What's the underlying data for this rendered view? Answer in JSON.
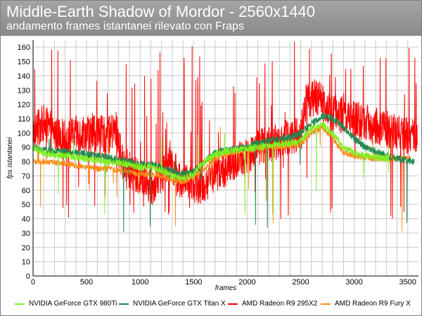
{
  "header": {
    "title": "Middle-Earth Shadow of Mordor - 2560x1440",
    "subtitle": "andamento frames istantanei rilevato con Fraps"
  },
  "chart_data": {
    "type": "line",
    "title": "Middle-Earth Shadow of Mordor - 2560x1440",
    "subtitle": "andamento frames istantanei rilevato con Fraps",
    "xlabel": "frames",
    "ylabel": "fps istantanei",
    "xlim": [
      0,
      3600
    ],
    "ylim": [
      0,
      165
    ],
    "x_ticks": [
      0,
      500,
      1000,
      1500,
      2000,
      2500,
      3000,
      3500
    ],
    "y_ticks": [
      0,
      10,
      20,
      30,
      40,
      50,
      60,
      70,
      80,
      90,
      100,
      110,
      120,
      130,
      140,
      150,
      160
    ],
    "grid": true,
    "legend_position": "bottom",
    "series": [
      {
        "name": "AMD Radeon R9 295X2",
        "color": "#ff0000",
        "end_frame": 3590,
        "noise": 13,
        "spike_rate": 0.07,
        "spike_range": [
          40,
          165
        ],
        "points": [
          [
            0,
            100
          ],
          [
            100,
            107
          ],
          [
            200,
            100
          ],
          [
            300,
            96
          ],
          [
            400,
            99
          ],
          [
            500,
            100
          ],
          [
            600,
            100
          ],
          [
            700,
            98
          ],
          [
            780,
            103
          ],
          [
            830,
            80
          ],
          [
            1000,
            67
          ],
          [
            1100,
            62
          ],
          [
            1200,
            70
          ],
          [
            1280,
            82
          ],
          [
            1350,
            70
          ],
          [
            1400,
            65
          ],
          [
            1500,
            64
          ],
          [
            1600,
            63
          ],
          [
            1700,
            72
          ],
          [
            1800,
            75
          ],
          [
            1900,
            80
          ],
          [
            2000,
            84
          ],
          [
            2100,
            90
          ],
          [
            2200,
            92
          ],
          [
            2300,
            95
          ],
          [
            2400,
            97
          ],
          [
            2500,
            100
          ],
          [
            2550,
            122
          ],
          [
            2650,
            125
          ],
          [
            2800,
            115
          ],
          [
            2900,
            112
          ],
          [
            3000,
            110
          ],
          [
            3100,
            107
          ],
          [
            3200,
            105
          ],
          [
            3300,
            103
          ],
          [
            3400,
            100
          ],
          [
            3500,
            98
          ],
          [
            3590,
            97
          ]
        ]
      },
      {
        "name": "AMD Radeon R9 Fury X",
        "color": "#ff8c1a",
        "end_frame": 3520,
        "noise": 2,
        "spike_rate": 0.015,
        "spike_range": [
          30,
          110
        ],
        "points": [
          [
            0,
            80
          ],
          [
            100,
            80
          ],
          [
            200,
            79
          ],
          [
            300,
            79
          ],
          [
            400,
            77
          ],
          [
            500,
            76
          ],
          [
            600,
            75
          ],
          [
            700,
            75
          ],
          [
            800,
            74
          ],
          [
            900,
            73
          ],
          [
            1000,
            71
          ],
          [
            1100,
            71
          ],
          [
            1200,
            70
          ],
          [
            1300,
            67
          ],
          [
            1400,
            66
          ],
          [
            1500,
            69
          ],
          [
            1600,
            75
          ],
          [
            1700,
            82
          ],
          [
            1800,
            85
          ],
          [
            1900,
            87
          ],
          [
            2000,
            88
          ],
          [
            2100,
            89
          ],
          [
            2200,
            90
          ],
          [
            2300,
            90
          ],
          [
            2400,
            91
          ],
          [
            2500,
            92
          ],
          [
            2600,
            100
          ],
          [
            2700,
            104
          ],
          [
            2800,
            96
          ],
          [
            2900,
            86
          ],
          [
            3000,
            84
          ],
          [
            3100,
            83
          ],
          [
            3200,
            82
          ],
          [
            3300,
            82
          ],
          [
            3400,
            82
          ],
          [
            3520,
            83
          ]
        ]
      },
      {
        "name": "NVIDIA GeForce GTX Titan X",
        "color": "#1e8a50",
        "end_frame": 3560,
        "noise": 2.5,
        "spike_rate": 0.008,
        "spike_range": [
          30,
          100
        ],
        "points": [
          [
            0,
            90
          ],
          [
            100,
            88
          ],
          [
            200,
            87
          ],
          [
            300,
            87
          ],
          [
            400,
            86
          ],
          [
            500,
            85
          ],
          [
            600,
            84
          ],
          [
            700,
            83
          ],
          [
            800,
            81
          ],
          [
            900,
            80
          ],
          [
            1000,
            78
          ],
          [
            1100,
            78
          ],
          [
            1200,
            76
          ],
          [
            1300,
            73
          ],
          [
            1400,
            71
          ],
          [
            1500,
            73
          ],
          [
            1600,
            80
          ],
          [
            1700,
            86
          ],
          [
            1800,
            88
          ],
          [
            1900,
            89
          ],
          [
            2000,
            90
          ],
          [
            2100,
            93
          ],
          [
            2200,
            95
          ],
          [
            2300,
            96
          ],
          [
            2400,
            97
          ],
          [
            2500,
            100
          ],
          [
            2600,
            106
          ],
          [
            2700,
            112
          ],
          [
            2800,
            110
          ],
          [
            2900,
            104
          ],
          [
            3000,
            96
          ],
          [
            3100,
            90
          ],
          [
            3200,
            87
          ],
          [
            3300,
            84
          ],
          [
            3400,
            82
          ],
          [
            3560,
            80
          ]
        ]
      },
      {
        "name": "NVIDIA GeForce GTX 980Ti",
        "color": "#80f020",
        "end_frame": 3330,
        "noise": 2.5,
        "spike_rate": 0.006,
        "spike_range": [
          35,
          100
        ],
        "points": [
          [
            0,
            90
          ],
          [
            100,
            86
          ],
          [
            200,
            85
          ],
          [
            300,
            84
          ],
          [
            400,
            83
          ],
          [
            500,
            82
          ],
          [
            600,
            81
          ],
          [
            700,
            80
          ],
          [
            800,
            79
          ],
          [
            900,
            78
          ],
          [
            1000,
            76
          ],
          [
            1100,
            76
          ],
          [
            1200,
            74
          ],
          [
            1300,
            70
          ],
          [
            1400,
            68
          ],
          [
            1500,
            71
          ],
          [
            1600,
            80
          ],
          [
            1700,
            85
          ],
          [
            1800,
            87
          ],
          [
            1900,
            88
          ],
          [
            2000,
            89
          ],
          [
            2100,
            90
          ],
          [
            2200,
            91
          ],
          [
            2300,
            92
          ],
          [
            2400,
            93
          ],
          [
            2500,
            94
          ],
          [
            2600,
            103
          ],
          [
            2700,
            106
          ],
          [
            2800,
            100
          ],
          [
            2900,
            90
          ],
          [
            3000,
            86
          ],
          [
            3100,
            84
          ],
          [
            3200,
            83
          ],
          [
            3330,
            82
          ]
        ]
      }
    ]
  },
  "legend": {
    "items": [
      {
        "label": "NVIDIA GeForce GTX 980Ti",
        "color": "#80f020"
      },
      {
        "label": "NVIDIA GeForce GTX Titan X",
        "color": "#1e8a50"
      },
      {
        "label": "AMD Radeon R9 295X2",
        "color": "#ff0000"
      },
      {
        "label": "AMD Radeon R9 Fury X",
        "color": "#ff8c1a"
      }
    ]
  }
}
